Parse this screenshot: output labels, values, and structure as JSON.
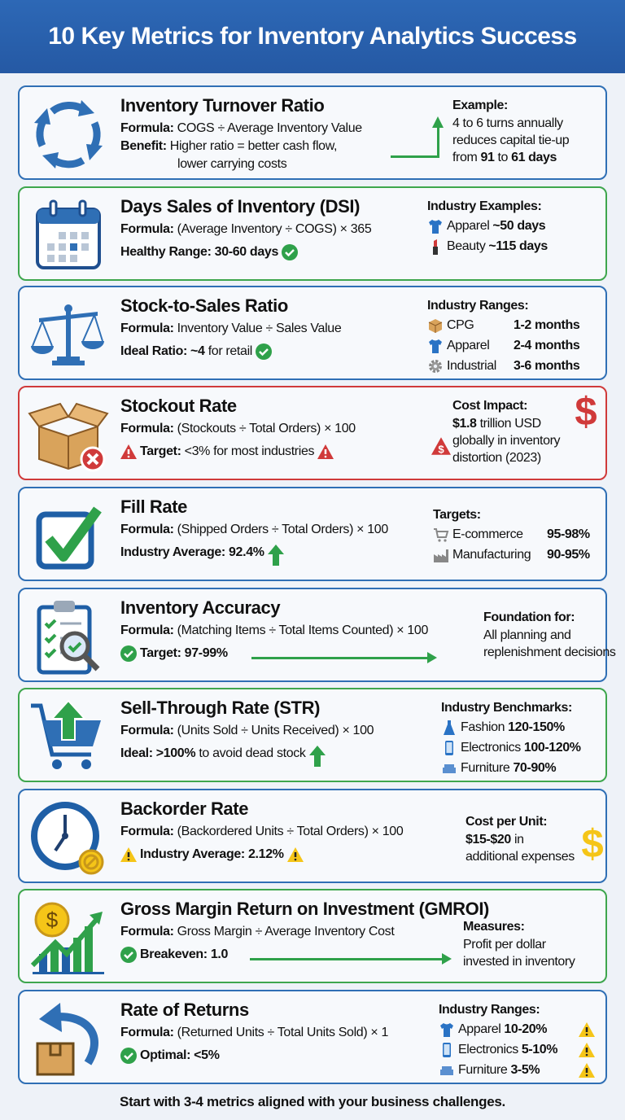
{
  "header": {
    "title": "10 Key Metrics for Inventory Analytics Success"
  },
  "colors": {
    "header": "#2a61ad",
    "blue": "#2f6fb5",
    "green": "#3ea64d",
    "red": "#d03a3a",
    "warning": "#f5c518"
  },
  "cards": [
    {
      "title": "Inventory Turnover Ratio",
      "border": "blue",
      "icon": "cycle-arrows-icon",
      "lines": [
        {
          "label": "Formula:",
          "text": "COGS ÷ Average Inventory Value"
        },
        {
          "label": "Benefit:",
          "text": "Higher ratio = better cash flow,"
        },
        {
          "text": "lower carrying costs",
          "indent": true
        }
      ],
      "side": {
        "heading": "Example:",
        "text": [
          "4 to 6 turns annually",
          "reduces capital tie-up"
        ],
        "rich": [
          "from ",
          "91",
          " to ",
          "61 days"
        ]
      }
    },
    {
      "title": "Days Sales of Inventory (DSI)",
      "border": "green",
      "icon": "calendar-icon",
      "lines": [
        {
          "label": "Formula:",
          "text": "(Average Inventory ÷ COGS) × 365"
        },
        {
          "label": "Healthy Range: 30-60 days",
          "text": "",
          "suffix": "check-circle-icon",
          "gap": true
        }
      ],
      "side": {
        "heading": "Industry Examples:",
        "items": [
          {
            "icon": "shirt-icon",
            "label": "Apparel",
            "value": "~50 days"
          },
          {
            "icon": "lipstick-icon",
            "label": "Beauty",
            "value": "~115 days"
          }
        ]
      }
    },
    {
      "title": "Stock-to-Sales Ratio",
      "border": "blue",
      "icon": "balance-scale-icon",
      "lines": [
        {
          "label": "Formula:",
          "text": "Inventory Value ÷ Sales Value"
        },
        {
          "label": "Ideal Ratio:",
          "text": "~4 for retail",
          "boldText": "~4",
          "suffix": "check-circle-icon",
          "gap": true
        }
      ],
      "side": {
        "heading": "Industry Ranges:",
        "items": [
          {
            "icon": "package-icon",
            "label": "CPG",
            "value": "1-2 months"
          },
          {
            "icon": "shirt-icon",
            "label": "Apparel",
            "value": "2-4 months"
          },
          {
            "icon": "gear-icon",
            "label": "Industrial",
            "value": "3-6 months"
          }
        ]
      }
    },
    {
      "title": "Stockout Rate",
      "border": "red",
      "icon": "empty-box-icon",
      "lines": [
        {
          "label": "Formula:",
          "text": "(Stockouts ÷ Total Orders) × 100"
        },
        {
          "prefix": "red-warning-icon",
          "label": "Target:",
          "text": "<3% for most industries",
          "suffix": "red-warning-icon",
          "gap": true
        }
      ],
      "side": {
        "heading": "Cost Impact:",
        "rich": [
          "$1.8",
          " trillion USD"
        ],
        "text": [
          "globally in inventory",
          "distortion (2023)"
        ],
        "badge": "dollar-warning-icon",
        "big": "red-dollar-icon"
      }
    },
    {
      "title": "Fill Rate",
      "border": "blue",
      "icon": "checkbox-icon",
      "lines": [
        {
          "label": "Formula:",
          "text": "(Shipped Orders ÷ Total Orders) × 100"
        },
        {
          "label": "Industry Average: 92.4%",
          "text": "",
          "suffix": "green-up-arrow-icon",
          "gap": true
        }
      ],
      "side": {
        "heading": "Targets:",
        "items": [
          {
            "icon": "cart-icon",
            "label": "E-commerce",
            "value": "95-98%"
          },
          {
            "icon": "factory-icon",
            "label": "Manufacturing",
            "value": "90-95%"
          }
        ]
      }
    },
    {
      "title": "Inventory Accuracy",
      "border": "blue",
      "icon": "clipboard-magnifier-icon",
      "lines": [
        {
          "label": "Formula:",
          "text": "(Matching Items ÷ Total Items Counted) × 100"
        },
        {
          "prefix": "check-circle-icon",
          "label": "Target: 97-99%",
          "text": "",
          "gap": true
        }
      ],
      "side": {
        "heading": "Foundation for:",
        "text": [
          "All planning and",
          "replenishment decisions"
        ]
      }
    },
    {
      "title": "Sell-Through Rate (STR)",
      "border": "green",
      "icon": "cart-up-arrow-icon",
      "lines": [
        {
          "label": "Formula:",
          "text": "(Units Sold ÷ Units Received) × 100"
        },
        {
          "label": "Ideal:",
          "text": ">100% to avoid dead stock",
          "boldText": ">100%",
          "suffix": "green-up-arrow-icon",
          "gap": true
        }
      ],
      "side": {
        "heading": "Industry Benchmarks:",
        "items": [
          {
            "icon": "dress-icon",
            "label": "Fashion",
            "value": "120-150%"
          },
          {
            "icon": "phone-icon",
            "label": "Electronics",
            "value": "100-120%"
          },
          {
            "icon": "sofa-icon",
            "label": "Furniture",
            "value": "70-90%"
          }
        ]
      }
    },
    {
      "title": "Backorder Rate",
      "border": "blue",
      "icon": "clock-icon",
      "lines": [
        {
          "label": "Formula:",
          "text": "(Backordered Units ÷ Total Orders) × 100"
        },
        {
          "prefix": "yellow-warning-icon",
          "label": "Industry Average: 2.12%",
          "text": "",
          "suffix": "yellow-warning-icon",
          "gap": true
        }
      ],
      "side": {
        "heading": "Cost per Unit:",
        "rich": [
          "$15-$20",
          " in"
        ],
        "text": [
          "additional expenses"
        ],
        "big": "yellow-dollar-icon"
      }
    },
    {
      "title": "Gross Margin Return on Investment (GMROI)",
      "border": "green",
      "icon": "growth-chart-icon",
      "lines": [
        {
          "label": "Formula:",
          "text": "Gross Margin ÷ Average Inventory Cost"
        },
        {
          "prefix": "check-circle-icon",
          "label": "Breakeven: 1.0",
          "text": "",
          "gap": true
        }
      ],
      "side": {
        "heading": "Measures:",
        "text": [
          "Profit per dollar",
          "invested in inventory"
        ]
      }
    },
    {
      "title": "Rate of Returns",
      "border": "blue",
      "icon": "return-box-icon",
      "lines": [
        {
          "label": "Formula:",
          "text": "(Returned Units ÷ Total Units Sold) × 1"
        },
        {
          "prefix": "check-circle-icon",
          "label": "Optimal: <5%",
          "text": "",
          "gap": true
        }
      ],
      "side": {
        "heading": "Industry Ranges:",
        "items": [
          {
            "icon": "shirt-icon",
            "label": "Apparel",
            "value": "10-20%",
            "warn": true
          },
          {
            "icon": "phone-icon",
            "label": "Electronics",
            "value": "5-10%",
            "warn": true
          },
          {
            "icon": "sofa-icon",
            "label": "Furniture",
            "value": "3-5%",
            "warn": true
          }
        ]
      }
    }
  ],
  "footer": {
    "text": "Start with 3-4 metrics aligned with your business challenges."
  }
}
